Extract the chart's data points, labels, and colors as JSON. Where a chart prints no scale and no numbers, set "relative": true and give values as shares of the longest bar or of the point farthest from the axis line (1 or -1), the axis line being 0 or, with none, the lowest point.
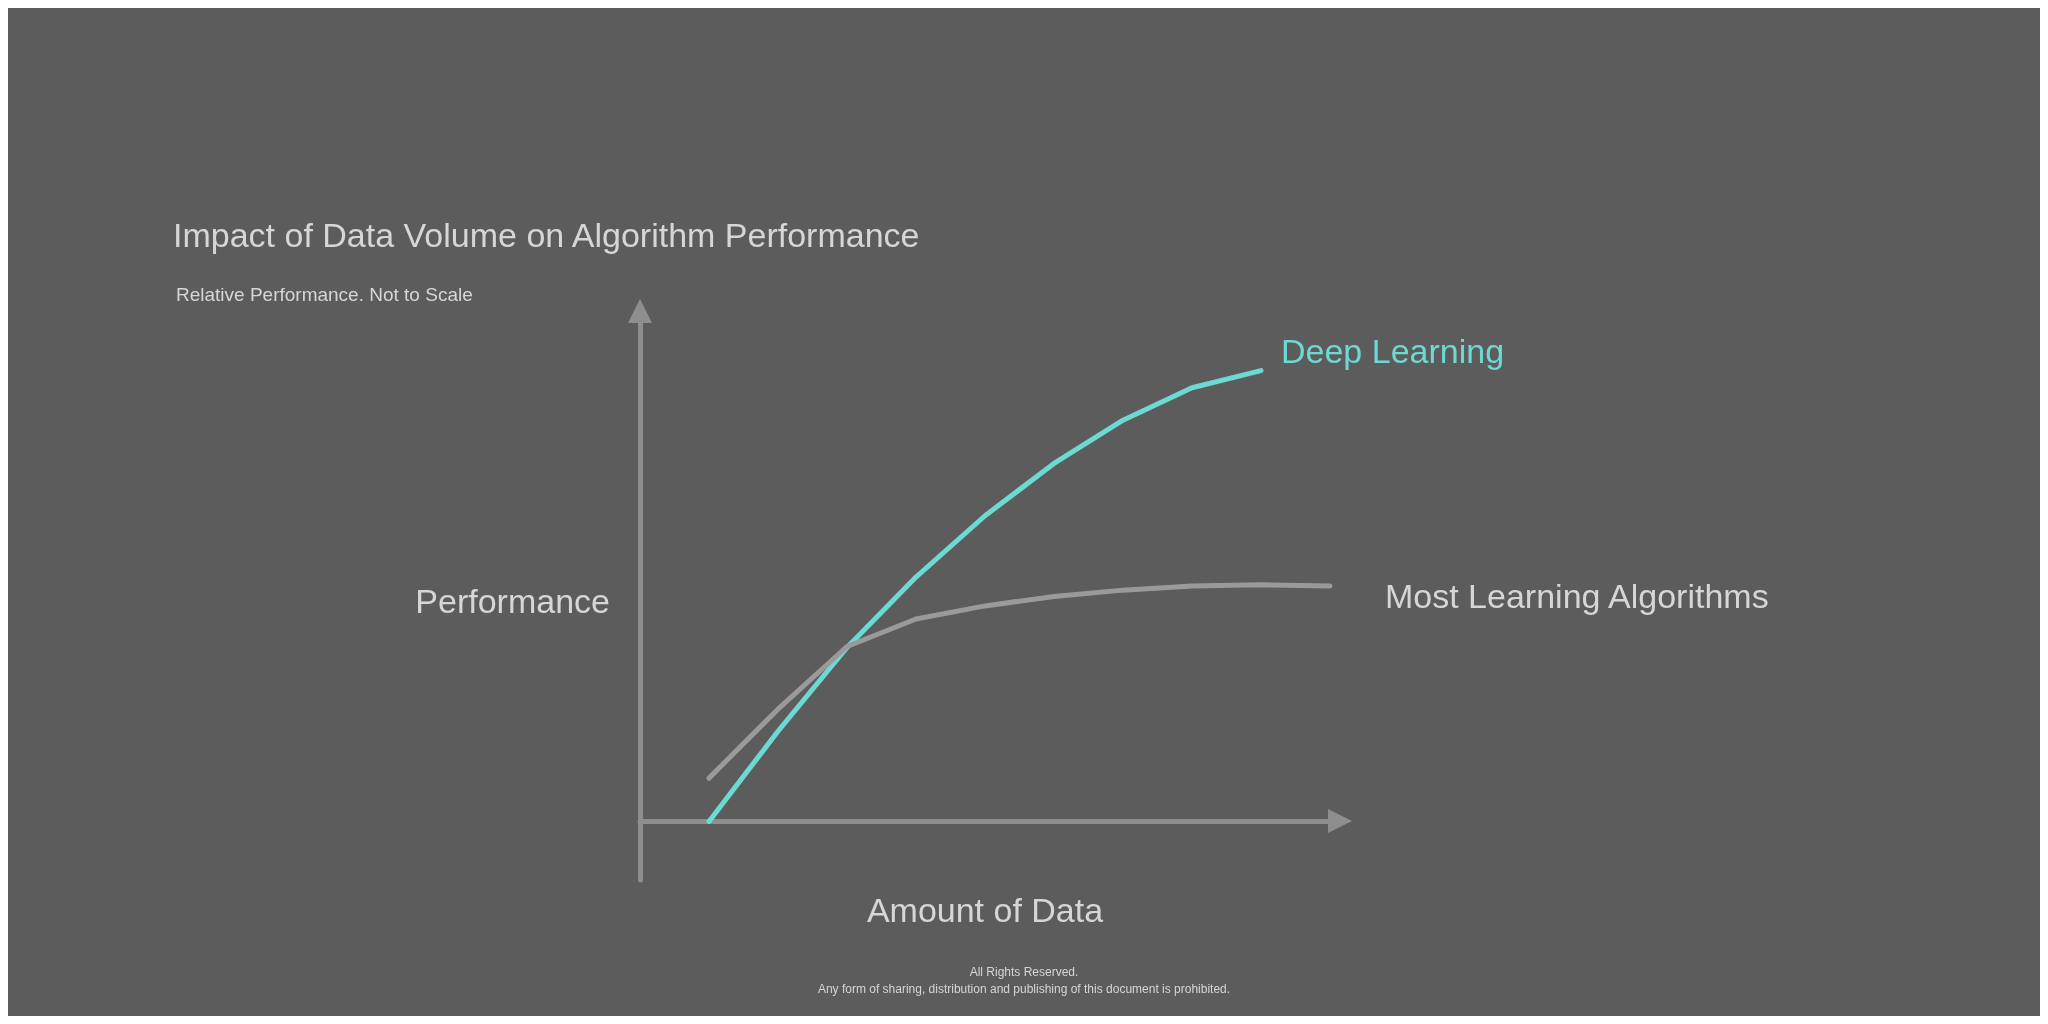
{
  "chart_data": {
    "type": "line",
    "title": "Impact of Data Volume on Algorithm Performance",
    "subtitle": "Relative Performance. Not to Scale",
    "xlabel": "Amount of Data",
    "ylabel": "Performance",
    "relative": true,
    "grid": false,
    "legend": false,
    "marker": "none",
    "line_style": "solid",
    "annotations": [
      "All Rights Reserved.",
      "Any form of sharing, distribution and publishing of this document is prohibited."
    ],
    "categories": [
      null,
      null,
      null,
      null,
      null,
      null,
      null,
      null,
      null,
      null,
      null
    ],
    "series": [
      {
        "name": "Deep Learning",
        "color": "#6cd9d3",
        "values": [
          null,
          0,
          0.2,
          0.386,
          0.542,
          0.678,
          0.794,
          0.89,
          0.962,
          1,
          null
        ]
      },
      {
        "name": "Most Learning Algorithms",
        "color": "#9a9a9a",
        "values": [
          null,
          0.096,
          0.249,
          0.388,
          0.449,
          0.478,
          0.499,
          0.513,
          0.522,
          0.525,
          0.522
        ]
      }
    ]
  }
}
